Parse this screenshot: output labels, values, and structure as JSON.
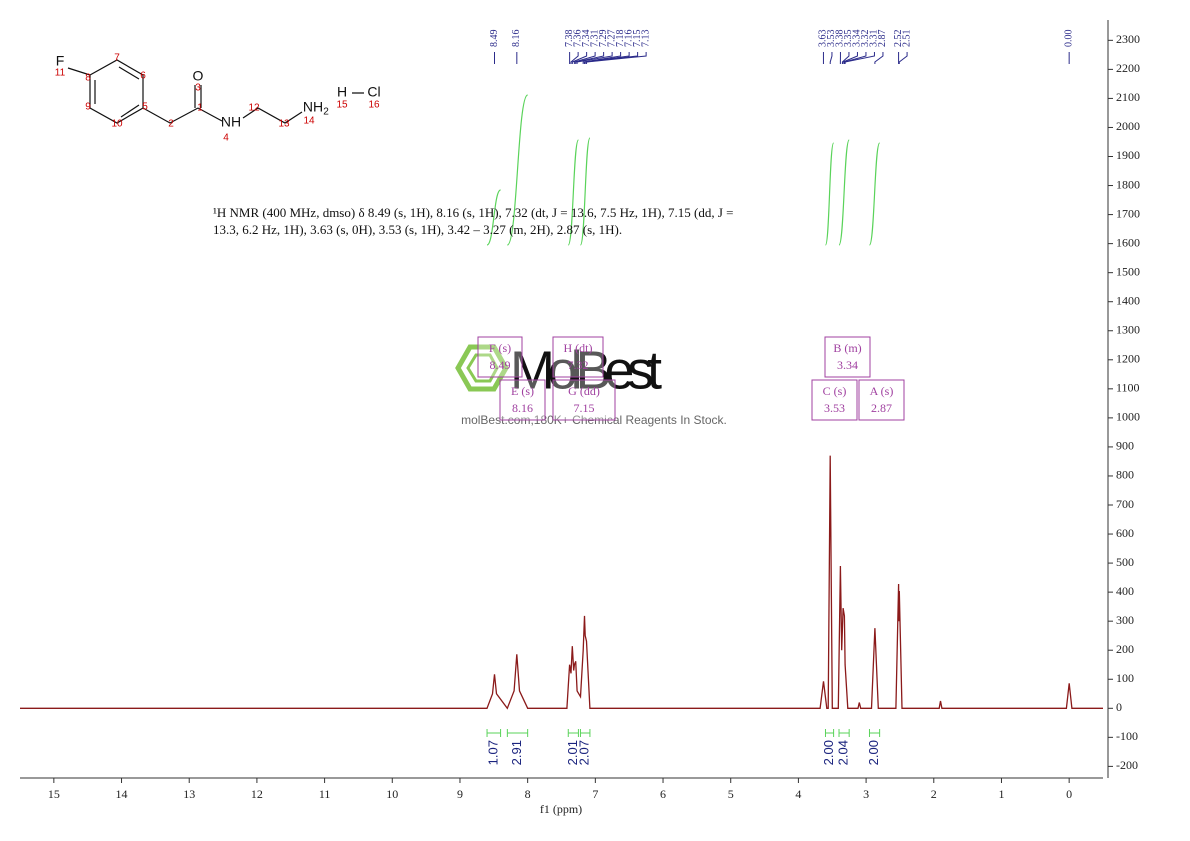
{
  "chart_data": {
    "type": "line",
    "x_label": "f1 (ppm)",
    "color": "#8b1a1a",
    "xlim": [
      15.5,
      -0.5
    ],
    "xticks": [
      15,
      14,
      13,
      12,
      11,
      10,
      9,
      8,
      7,
      6,
      5,
      4,
      3,
      2,
      1,
      0
    ],
    "ylim": [
      -240,
      2370
    ],
    "yticks": [
      -200,
      -100,
      0,
      100,
      200,
      300,
      400,
      500,
      600,
      700,
      800,
      900,
      1000,
      1100,
      1200,
      1300,
      1400,
      1500,
      1600,
      1700,
      1800,
      1900,
      2000,
      2100,
      2200,
      2300
    ],
    "x": [
      15.5,
      8.6,
      8.52,
      8.49,
      8.46,
      8.3,
      8.2,
      8.16,
      8.12,
      8.0,
      7.42,
      7.38,
      7.36,
      7.34,
      7.32,
      7.31,
      7.29,
      7.27,
      7.22,
      7.18,
      7.16,
      7.15,
      7.13,
      7.08,
      3.68,
      3.63,
      3.58,
      3.56,
      3.53,
      3.5,
      3.41,
      3.38,
      3.36,
      3.34,
      3.32,
      3.31,
      3.27,
      3.12,
      3.1,
      3.08,
      2.92,
      2.87,
      2.82,
      2.56,
      2.52,
      2.515,
      2.51,
      2.47,
      1.92,
      1.9,
      1.88,
      0.04,
      0,
      -0.04,
      -0.5
    ],
    "values": [
      0,
      0,
      50,
      117,
      50,
      0,
      60,
      186,
      60,
      0,
      0,
      150,
      120,
      214,
      130,
      150,
      162,
      60,
      40,
      200,
      318,
      250,
      231,
      0,
      0,
      93,
      0,
      0,
      870,
      0,
      0,
      490,
      200,
      345,
      318,
      150,
      0,
      0,
      20,
      0,
      0,
      276,
      0,
      0,
      428,
      300,
      404,
      0,
      0,
      25,
      0,
      0,
      86,
      0,
      0
    ],
    "peak_labels": [
      8.49,
      8.16,
      7.38,
      7.36,
      7.34,
      7.31,
      7.29,
      7.27,
      7.18,
      7.16,
      7.15,
      7.13,
      3.63,
      3.53,
      3.38,
      3.35,
      3.34,
      3.32,
      3.31,
      2.87,
      2.52,
      2.51,
      {
        "value": 0,
        "label": "0.00"
      }
    ],
    "integrals": {
      "ranges": [
        [
          8.6,
          8.4
        ],
        [
          8.3,
          8.0
        ],
        [
          7.4,
          7.25
        ],
        [
          7.22,
          7.08
        ],
        [
          3.6,
          3.48
        ],
        [
          3.4,
          3.25
        ],
        [
          2.95,
          2.8
        ]
      ],
      "values": [
        1.07,
        2.91,
        2.01,
        2.07,
        2,
        2.04,
        2
      ],
      "value_labels": [
        "1.07",
        "2.91",
        "2.01",
        "2.07",
        "2.00",
        "2.04",
        "2.00"
      ]
    },
    "multiplets": [
      {
        "label": "F (s)",
        "shift": 8.49
      },
      {
        "label": "E (s)",
        "shift": 8.16
      },
      {
        "label": "H (dt)",
        "shift": 7.32
      },
      {
        "label": "G (dd)",
        "shift": 7.15
      },
      {
        "label": "B (m)",
        "shift": 3.34
      },
      {
        "label": "C (s)",
        "shift": 3.53
      },
      {
        "label": "A (s)",
        "shift": 2.87
      }
    ]
  },
  "description": "¹H NMR (400 MHz, dmso) δ 8.49 (s, 1H), 8.16 (s, 1H), 7.32 (dt, J = 13.6, 7.5 Hz, 1H), 7.15 (dd, J = 13.3, 6.2 Hz, 1H), 3.63 (s, 0H), 3.53 (s, 1H), 3.42 – 3.27 (m, 2H), 2.87 (s, 1H).",
  "molecule": {
    "labels": [
      "F",
      "11",
      "8",
      "7",
      "6",
      "5",
      "9",
      "10",
      "2",
      "1",
      "3",
      "O",
      "NH",
      "4",
      "12",
      "13",
      "NH",
      "2",
      "14",
      "H",
      "15",
      "Cl",
      "16"
    ]
  },
  "watermark": {
    "brand": "MolBest",
    "tagline": "molBest.com,180K+ Chemical Reagents In Stock."
  }
}
